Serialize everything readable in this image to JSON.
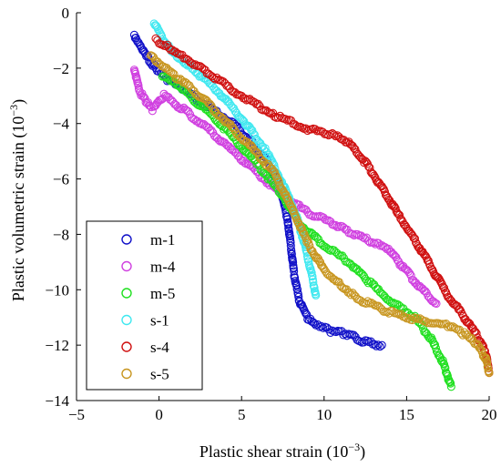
{
  "chart_data": {
    "type": "scatter",
    "title": "",
    "xlabel": "Plastic shear strain (10",
    "xlabel_exponent": "−3",
    "xlabel_suffix": ")",
    "ylabel": "Plastic volumetric strain (10",
    "ylabel_exponent": "−3",
    "ylabel_suffix": ")",
    "xlim": [
      -5,
      20
    ],
    "ylim": [
      -14,
      0
    ],
    "x_ticks": [
      -5,
      0,
      5,
      10,
      15,
      20
    ],
    "y_ticks": [
      -14,
      -12,
      -10,
      -8,
      -6,
      -4,
      -2,
      0
    ],
    "marker": "open-circle",
    "legend_position": "bottom-left",
    "series": [
      {
        "name": "m-1",
        "color": "#1010c8",
        "points": [
          [
            -1.5,
            -0.8
          ],
          [
            -1.3,
            -1.0
          ],
          [
            -1.0,
            -1.3
          ],
          [
            -0.6,
            -1.7
          ],
          [
            -0.2,
            -2.0
          ],
          [
            0.5,
            -2.4
          ],
          [
            1.5,
            -2.8
          ],
          [
            3.0,
            -3.4
          ],
          [
            4.5,
            -4.0
          ],
          [
            5.5,
            -4.6
          ],
          [
            6.5,
            -5.3
          ],
          [
            7.3,
            -6.2
          ],
          [
            7.8,
            -7.5
          ],
          [
            8.0,
            -8.5
          ],
          [
            8.2,
            -9.5
          ],
          [
            8.5,
            -10.4
          ],
          [
            9.0,
            -11.0
          ],
          [
            9.5,
            -11.3
          ],
          [
            10.5,
            -11.5
          ],
          [
            11.5,
            -11.6
          ],
          [
            12.5,
            -11.9
          ],
          [
            13.5,
            -12.0
          ]
        ]
      },
      {
        "name": "m-4",
        "color": "#d040e0",
        "points": [
          [
            -1.5,
            -2.0
          ],
          [
            -1.2,
            -2.8
          ],
          [
            -0.8,
            -3.2
          ],
          [
            -0.4,
            -3.5
          ],
          [
            0.3,
            -3.0
          ],
          [
            1.5,
            -3.5
          ],
          [
            3.0,
            -4.2
          ],
          [
            4.5,
            -5.0
          ],
          [
            6.0,
            -5.8
          ],
          [
            7.5,
            -6.6
          ],
          [
            9.0,
            -7.2
          ],
          [
            10.5,
            -7.6
          ],
          [
            11.5,
            -7.9
          ],
          [
            13.0,
            -8.3
          ],
          [
            14.0,
            -8.6
          ],
          [
            14.8,
            -9.2
          ],
          [
            15.8,
            -9.9
          ],
          [
            16.8,
            -10.5
          ]
        ]
      },
      {
        "name": "m-5",
        "color": "#20e020",
        "points": [
          [
            0.2,
            -2.3
          ],
          [
            0.8,
            -2.5
          ],
          [
            1.5,
            -2.8
          ],
          [
            3.0,
            -3.6
          ],
          [
            4.5,
            -4.5
          ],
          [
            6.0,
            -5.5
          ],
          [
            7.5,
            -6.6
          ],
          [
            8.5,
            -7.6
          ],
          [
            10.0,
            -8.4
          ],
          [
            11.5,
            -9.0
          ],
          [
            12.5,
            -9.6
          ],
          [
            14.0,
            -10.4
          ],
          [
            15.5,
            -11.0
          ],
          [
            16.5,
            -11.8
          ],
          [
            17.2,
            -12.6
          ],
          [
            17.7,
            -13.5
          ]
        ]
      },
      {
        "name": "s-1",
        "color": "#40e8f0",
        "points": [
          [
            -0.3,
            -0.4
          ],
          [
            0.0,
            -0.7
          ],
          [
            0.5,
            -1.2
          ],
          [
            1.0,
            -1.5
          ],
          [
            2.0,
            -2.0
          ],
          [
            3.5,
            -2.8
          ],
          [
            5.0,
            -3.8
          ],
          [
            6.5,
            -5.0
          ],
          [
            7.5,
            -6.2
          ],
          [
            8.3,
            -7.3
          ],
          [
            8.8,
            -8.3
          ],
          [
            9.2,
            -9.3
          ],
          [
            9.5,
            -10.2
          ]
        ]
      },
      {
        "name": "s-4",
        "color": "#d01010",
        "points": [
          [
            -0.2,
            -1.0
          ],
          [
            0.5,
            -1.2
          ],
          [
            1.5,
            -1.6
          ],
          [
            3.0,
            -2.2
          ],
          [
            5.0,
            -3.0
          ],
          [
            7.0,
            -3.7
          ],
          [
            9.0,
            -4.2
          ],
          [
            10.5,
            -4.4
          ],
          [
            11.5,
            -4.7
          ],
          [
            12.5,
            -5.4
          ],
          [
            13.5,
            -6.3
          ],
          [
            14.5,
            -7.3
          ],
          [
            15.5,
            -8.2
          ],
          [
            16.5,
            -9.2
          ],
          [
            17.5,
            -10.2
          ],
          [
            18.5,
            -11.0
          ],
          [
            19.3,
            -11.7
          ],
          [
            19.8,
            -12.3
          ],
          [
            20.0,
            -13.0
          ]
        ]
      },
      {
        "name": "s-5",
        "color": "#c89620",
        "points": [
          [
            -0.5,
            -1.5
          ],
          [
            0.0,
            -1.8
          ],
          [
            1.0,
            -2.3
          ],
          [
            2.5,
            -3.0
          ],
          [
            4.0,
            -3.9
          ],
          [
            5.5,
            -4.8
          ],
          [
            7.0,
            -5.8
          ],
          [
            8.0,
            -7.0
          ],
          [
            9.0,
            -8.3
          ],
          [
            10.0,
            -9.3
          ],
          [
            11.0,
            -9.8
          ],
          [
            12.0,
            -10.3
          ],
          [
            13.5,
            -10.7
          ],
          [
            15.0,
            -11.0
          ],
          [
            16.5,
            -11.2
          ],
          [
            17.5,
            -11.3
          ],
          [
            18.5,
            -11.6
          ],
          [
            19.3,
            -12.0
          ],
          [
            19.8,
            -12.5
          ],
          [
            20.0,
            -13.0
          ]
        ]
      }
    ]
  }
}
